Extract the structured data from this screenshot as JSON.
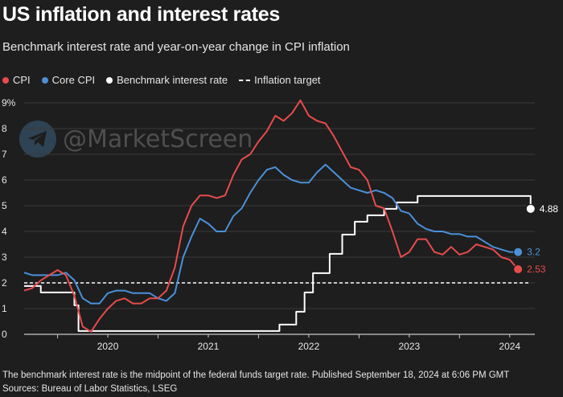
{
  "header": {
    "title": "US inflation and interest rates",
    "subtitle": "Benchmark interest rate and year-on-year change in CPI inflation"
  },
  "legend": {
    "items": [
      {
        "label": "CPI",
        "color": "#e84b4b",
        "kind": "dot"
      },
      {
        "label": "Core CPI",
        "color": "#4a90d9",
        "kind": "dot"
      },
      {
        "label": "Benchmark interest rate",
        "color": "#ffffff",
        "kind": "dot"
      },
      {
        "label": "Inflation target",
        "color": "#ffffff",
        "kind": "dash"
      }
    ]
  },
  "watermark": {
    "text": "@MarketScreen",
    "icon": "telegram-icon"
  },
  "footer": {
    "note": "The benchmark interest rate is the midpoint of the federal funds target rate. Published September 18, 2024 at 6:06 PM GMT",
    "sources": "Sources: Bureau of Labor Statistics, LSEG"
  },
  "chart_data": {
    "type": "line",
    "title": "US inflation and interest rates",
    "subtitle": "Benchmark interest rate and year-on-year change in CPI inflation",
    "ylim": [
      0,
      9
    ],
    "yticks": [
      "0",
      "1",
      "2",
      "3",
      "4",
      "5",
      "6",
      "7",
      "8",
      "9%"
    ],
    "xlim": [
      2019.667,
      2024.75
    ],
    "xticks": [
      "2020",
      "2021",
      "2022",
      "2023",
      "2024"
    ],
    "grid": true,
    "legend_position": "top-left",
    "colors": {
      "cpi": "#e84b4b",
      "core": "#4a90d9",
      "rate": "#ffffff",
      "target": "#ffffff",
      "grid": "#3a3a3a",
      "axis": "#c8c8c8"
    },
    "target_line": {
      "name": "Inflation target",
      "value": 2
    },
    "end_labels": {
      "cpi": "2.53",
      "core": "3.2",
      "rate": "4.88"
    },
    "series": [
      {
        "key": "cpi",
        "name": "CPI",
        "x": [
          2019.667,
          2019.75,
          2019.833,
          2019.917,
          2020.0,
          2020.083,
          2020.167,
          2020.25,
          2020.333,
          2020.417,
          2020.5,
          2020.583,
          2020.667,
          2020.75,
          2020.833,
          2020.917,
          2021.0,
          2021.083,
          2021.167,
          2021.25,
          2021.333,
          2021.417,
          2021.5,
          2021.583,
          2021.667,
          2021.75,
          2021.833,
          2021.917,
          2022.0,
          2022.083,
          2022.167,
          2022.25,
          2022.333,
          2022.417,
          2022.5,
          2022.583,
          2022.667,
          2022.75,
          2022.833,
          2022.917,
          2023.0,
          2023.083,
          2023.167,
          2023.25,
          2023.333,
          2023.417,
          2023.5,
          2023.583,
          2023.667,
          2023.75,
          2023.833,
          2023.917,
          2024.0,
          2024.083,
          2024.167,
          2024.25,
          2024.333,
          2024.417,
          2024.5,
          2024.583
        ],
        "values": [
          1.7,
          1.8,
          2.1,
          2.3,
          2.5,
          2.3,
          1.5,
          0.3,
          0.1,
          0.6,
          1.0,
          1.3,
          1.4,
          1.2,
          1.2,
          1.4,
          1.4,
          1.7,
          2.6,
          4.2,
          5.0,
          5.4,
          5.4,
          5.3,
          5.4,
          6.2,
          6.8,
          7.0,
          7.5,
          7.9,
          8.5,
          8.3,
          8.6,
          9.1,
          8.5,
          8.3,
          8.2,
          7.7,
          7.1,
          6.5,
          6.4,
          6.0,
          5.0,
          4.9,
          4.0,
          3.0,
          3.2,
          3.7,
          3.7,
          3.2,
          3.1,
          3.4,
          3.1,
          3.2,
          3.5,
          3.4,
          3.3,
          3.0,
          2.9,
          2.53
        ]
      },
      {
        "key": "core",
        "name": "Core CPI",
        "x": [
          2019.667,
          2019.75,
          2019.833,
          2019.917,
          2020.0,
          2020.083,
          2020.167,
          2020.25,
          2020.333,
          2020.417,
          2020.5,
          2020.583,
          2020.667,
          2020.75,
          2020.833,
          2020.917,
          2021.0,
          2021.083,
          2021.167,
          2021.25,
          2021.333,
          2021.417,
          2021.5,
          2021.583,
          2021.667,
          2021.75,
          2021.833,
          2021.917,
          2022.0,
          2022.083,
          2022.167,
          2022.25,
          2022.333,
          2022.417,
          2022.5,
          2022.583,
          2022.667,
          2022.75,
          2022.833,
          2022.917,
          2023.0,
          2023.083,
          2023.167,
          2023.25,
          2023.333,
          2023.417,
          2023.5,
          2023.583,
          2023.667,
          2023.75,
          2023.833,
          2023.917,
          2024.0,
          2024.083,
          2024.167,
          2024.25,
          2024.333,
          2024.417,
          2024.5,
          2024.583
        ],
        "values": [
          2.4,
          2.3,
          2.3,
          2.3,
          2.3,
          2.4,
          2.1,
          1.4,
          1.2,
          1.2,
          1.6,
          1.7,
          1.7,
          1.6,
          1.6,
          1.6,
          1.4,
          1.3,
          1.6,
          3.0,
          3.8,
          4.5,
          4.3,
          4.0,
          4.0,
          4.6,
          4.9,
          5.5,
          6.0,
          6.4,
          6.5,
          6.2,
          6.0,
          5.9,
          5.9,
          6.3,
          6.6,
          6.3,
          6.0,
          5.7,
          5.6,
          5.5,
          5.6,
          5.5,
          5.3,
          4.8,
          4.7,
          4.3,
          4.1,
          4.0,
          4.0,
          3.9,
          3.9,
          3.8,
          3.8,
          3.6,
          3.4,
          3.3,
          3.2,
          3.2
        ]
      },
      {
        "key": "rate",
        "name": "Benchmark interest rate",
        "step": true,
        "x": [
          2019.667,
          2019.75,
          2019.833,
          2020.167,
          2020.208,
          2022.208,
          2022.375,
          2022.458,
          2022.542,
          2022.708,
          2022.833,
          2022.958,
          2023.083,
          2023.25,
          2023.375,
          2023.458,
          2023.583,
          2024.708
        ],
        "values": [
          1.88,
          1.88,
          1.63,
          1.13,
          0.13,
          0.38,
          0.88,
          1.63,
          2.38,
          3.13,
          3.88,
          4.38,
          4.63,
          4.88,
          5.13,
          5.13,
          5.38,
          4.88
        ]
      }
    ]
  }
}
